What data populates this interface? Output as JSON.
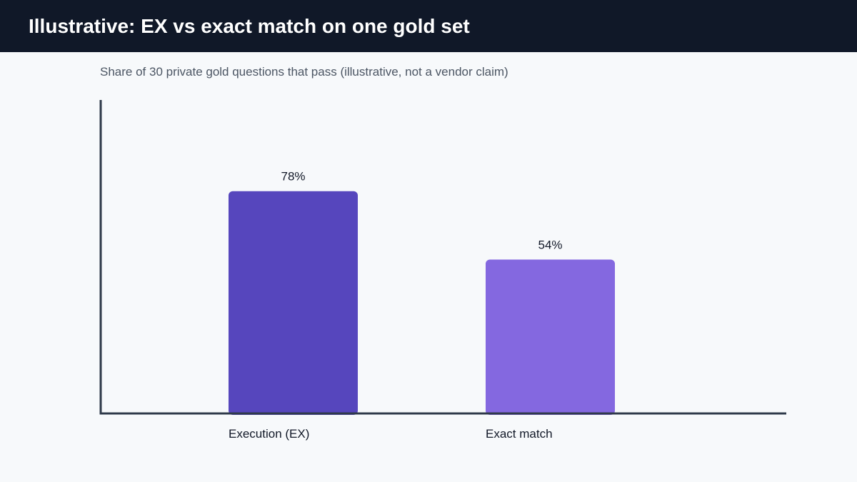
{
  "header": {
    "title": "Illustrative: EX vs exact match on one gold set"
  },
  "colors": {
    "header_bg": "#101828",
    "page_bg": "#f7f9fb",
    "axis": "#2f3a4a",
    "bar_ex": "#5646bd",
    "bar_exact": "#8468e0"
  },
  "chart_data": {
    "type": "bar",
    "title": "",
    "subtitle": "Share of 30 private gold questions that pass (illustrative, not a vendor claim)",
    "categories": [
      "Execution (EX)",
      "Exact match"
    ],
    "values": [
      78,
      54
    ],
    "value_labels": [
      "78%",
      "54%"
    ],
    "bar_colors": [
      "#5646bd",
      "#8468e0"
    ],
    "xlabel": "",
    "ylabel": "",
    "ylim": [
      0,
      110
    ],
    "grid": false,
    "legend": "none"
  }
}
